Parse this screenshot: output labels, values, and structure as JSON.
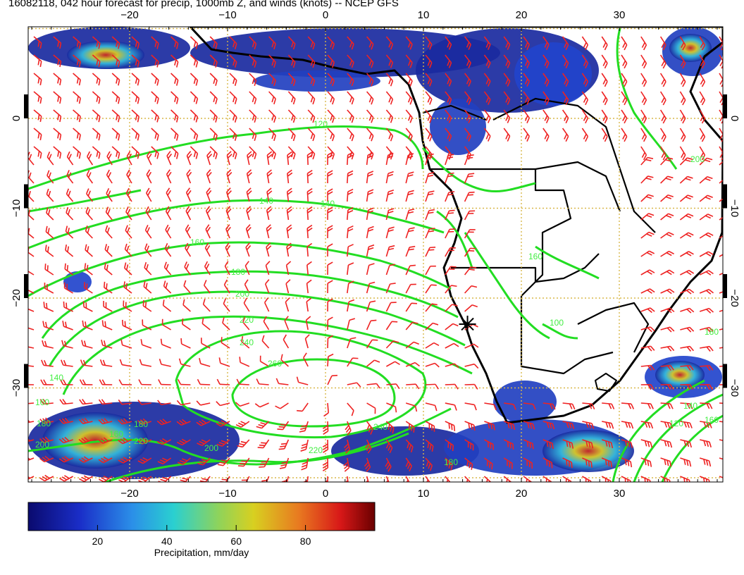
{
  "title": "16082118, 042 hour forecast for precip, 1000mb Z, and winds (knots) -- NCEP GFS",
  "map": {
    "lon_ticks": [
      -20,
      -10,
      0,
      10,
      20,
      30
    ],
    "lat_ticks": [
      0,
      -10,
      -20,
      -30
    ],
    "lon_range": [
      -30,
      41
    ],
    "lat_range": [
      9.5,
      -41
    ],
    "grid_style": "dotted",
    "grid_color": "#d9b84a"
  },
  "contours": {
    "variable": "1000mb geopotential height",
    "color": "#22dd22",
    "labels": [
      "120",
      "140",
      "140",
      "160",
      "180",
      "200",
      "220",
      "240",
      "260",
      "240",
      "220",
      "180",
      "160",
      "140",
      "160",
      "180",
      "200",
      "220",
      "200",
      "180",
      "160",
      "100",
      "120",
      "140",
      "160",
      "180",
      "200"
    ]
  },
  "winds": {
    "units": "knots",
    "color": "#ee2222",
    "symbol": "barb"
  },
  "precipitation": {
    "colors": [
      "#1a1a8c",
      "#2244cc",
      "#3388ee",
      "#44cccc",
      "#88dd66",
      "#dddd22",
      "#ee8822",
      "#dd2222",
      "#880000"
    ]
  },
  "colorbar": {
    "ticks": [
      20,
      40,
      60,
      80
    ],
    "range": [
      0,
      100
    ],
    "label": "Precipitation, mm/day"
  },
  "markers": [
    {
      "name": "star",
      "lon": 14.5,
      "lat": -22.9
    }
  ]
}
